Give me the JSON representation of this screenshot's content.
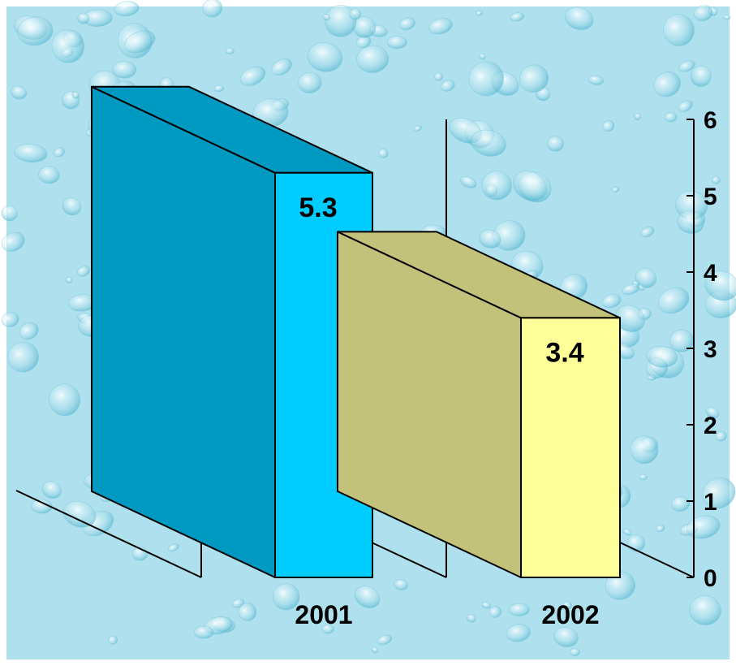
{
  "chart_data": {
    "type": "bar",
    "style": "3d",
    "categories": [
      "2001",
      "2002"
    ],
    "values": [
      5.3,
      3.4
    ],
    "data_labels": [
      "5.3",
      "3.4"
    ],
    "y_ticks": [
      "0",
      "1",
      "2",
      "3",
      "4",
      "5",
      "6"
    ],
    "ylim": [
      0,
      6
    ],
    "y_axis_side": "right",
    "grid": false,
    "legend": "none",
    "title": "",
    "xlabel": "",
    "ylabel": "",
    "colors": {
      "bar_2001_front": "#00ccff",
      "bar_2001_side": "#0099c2",
      "bar_2002_front": "#ffff99",
      "bar_2002_side": "#c2c27a",
      "outline": "#000000",
      "background": "#aee0ee"
    }
  }
}
